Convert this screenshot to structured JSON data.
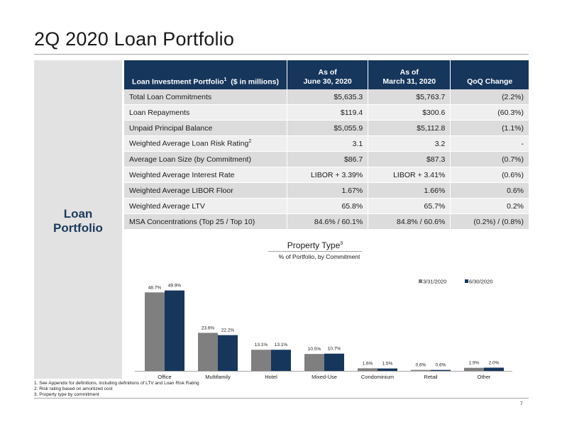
{
  "title": "2Q 2020 Loan Portfolio",
  "side_label_line1": "Loan",
  "side_label_line2": "Portfolio",
  "table": {
    "header": {
      "col0_text": "Loan Investment Portfolio",
      "col0_sup": "1",
      "col0_suffix": "($ in millions)",
      "col1_line1": "As of",
      "col1_line2": "June 30, 2020",
      "col2_line1": "As of",
      "col2_line2": "March 31, 2020",
      "col3": "QoQ Change"
    },
    "rows": [
      {
        "label": "Total Loan Commitments",
        "sup": "",
        "jun": "$5,635.3",
        "mar": "$5,763.7",
        "qoq": "(2.2%)"
      },
      {
        "label": "Loan Repayments",
        "sup": "",
        "jun": "$119.4",
        "mar": "$300.6",
        "qoq": "(60.3%)"
      },
      {
        "label": "Unpaid Principal Balance",
        "sup": "",
        "jun": "$5,055.9",
        "mar": "$5,112.8",
        "qoq": "(1.1%)"
      },
      {
        "label": "Weighted Average Loan Risk Rating",
        "sup": "2",
        "jun": "3.1",
        "mar": "3.2",
        "qoq": "-"
      },
      {
        "label": "Average Loan Size (by Commitment)",
        "sup": "",
        "jun": "$86.7",
        "mar": "$87.3",
        "qoq": "(0.7%)"
      },
      {
        "label": "Weighted Average Interest Rate",
        "sup": "",
        "jun": "LIBOR + 3.39%",
        "mar": "LIBOR + 3.41%",
        "qoq": "(0.6%)"
      },
      {
        "label": "Weighted Average LIBOR Floor",
        "sup": "",
        "jun": "1.67%",
        "mar": "1.66%",
        "qoq": "0.6%"
      },
      {
        "label": "Weighted Average LTV",
        "sup": "",
        "jun": "65.8%",
        "mar": "65.7%",
        "qoq": "0.2%"
      },
      {
        "label": "MSA Concentrations (Top 25 / Top 10)",
        "sup": "",
        "jun": "84.6% / 60.1%",
        "mar": "84.8% / 60.6%",
        "qoq": "(0.2%) / (0.8%)"
      }
    ]
  },
  "chart_title": "Property Type",
  "chart_title_sup": "3",
  "chart_subtitle": "% of Portfolio, by Commitment",
  "chart_data": {
    "type": "bar",
    "categories": [
      "Office",
      "Multifamily",
      "Hotel",
      "Mixed-Use",
      "Condominium",
      "Retail",
      "Other"
    ],
    "series": [
      {
        "name": "3/31/2020",
        "color": "#7f7f7f",
        "values": [
          48.7,
          23.6,
          13.1,
          10.5,
          1.6,
          0.6,
          1.9
        ],
        "labels": [
          "48.7%",
          "23.6%",
          "13.1%",
          "10.5%",
          "1.6%",
          "0.6%",
          "1.9%"
        ]
      },
      {
        "name": "6/30/2020",
        "color": "#16365c",
        "values": [
          49.9,
          22.2,
          13.1,
          10.7,
          1.5,
          0.6,
          2.0
        ],
        "labels": [
          "49.9%",
          "22.2%",
          "13.1%",
          "10.7%",
          "1.5%",
          "0.6%",
          "2.0%"
        ]
      }
    ],
    "ylim": [
      0,
      55
    ],
    "legend": "top-right",
    "grid": false
  },
  "footnotes": [
    "1. See Appendix for definitions, including definitions of LTV and Loan Risk Rating",
    "2. Risk rating based on amortized cost",
    "3. Property type by commitment"
  ],
  "page_number": "7"
}
